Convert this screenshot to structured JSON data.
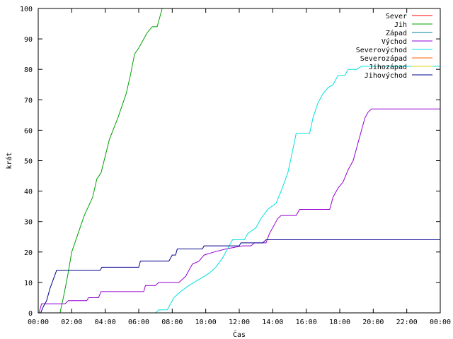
{
  "chart_data": {
    "type": "line",
    "xlabel": "Čas",
    "ylabel": "krát",
    "xlim": [
      0,
      24
    ],
    "ylim": [
      0,
      100
    ],
    "x_ticks": [
      {
        "value": 0,
        "label": "00:00"
      },
      {
        "value": 2,
        "label": "02:00"
      },
      {
        "value": 4,
        "label": "04:00"
      },
      {
        "value": 6,
        "label": "06:00"
      },
      {
        "value": 8,
        "label": "08:00"
      },
      {
        "value": 10,
        "label": "10:00"
      },
      {
        "value": 12,
        "label": "12:00"
      },
      {
        "value": 14,
        "label": "14:00"
      },
      {
        "value": 16,
        "label": "16:00"
      },
      {
        "value": 18,
        "label": "18:00"
      },
      {
        "value": 20,
        "label": "20:00"
      },
      {
        "value": 22,
        "label": "22:00"
      },
      {
        "value": 24,
        "label": "00:00"
      }
    ],
    "y_ticks": [
      {
        "value": 0,
        "label": "0"
      },
      {
        "value": 10,
        "label": "10"
      },
      {
        "value": 20,
        "label": "20"
      },
      {
        "value": 30,
        "label": "30"
      },
      {
        "value": 40,
        "label": "40"
      },
      {
        "value": 50,
        "label": "50"
      },
      {
        "value": 60,
        "label": "60"
      },
      {
        "value": 70,
        "label": "70"
      },
      {
        "value": 80,
        "label": "80"
      },
      {
        "value": 90,
        "label": "90"
      },
      {
        "value": 100,
        "label": "100"
      }
    ],
    "grid": false,
    "legend_position": "top-right",
    "series": [
      {
        "name": "Sever",
        "color": "#ff0000",
        "points": []
      },
      {
        "name": "Jih",
        "color": "#00a000",
        "points": [
          [
            1.3,
            0
          ],
          [
            1.5,
            5
          ],
          [
            1.75,
            12
          ],
          [
            2.0,
            20
          ],
          [
            2.5,
            28
          ],
          [
            2.75,
            32
          ],
          [
            3.25,
            38
          ],
          [
            3.5,
            44
          ],
          [
            3.75,
            46
          ],
          [
            4.25,
            57
          ],
          [
            4.75,
            64
          ],
          [
            5.25,
            72
          ],
          [
            5.5,
            78
          ],
          [
            5.75,
            85
          ],
          [
            6.0,
            87
          ],
          [
            6.5,
            92
          ],
          [
            6.8,
            94
          ],
          [
            7.1,
            94
          ],
          [
            7.4,
            100
          ]
        ]
      },
      {
        "name": "Západ",
        "color": "#0080a0",
        "points": []
      },
      {
        "name": "Východ",
        "color": "#9400d3",
        "points": [
          [
            0.05,
            0
          ],
          [
            0.2,
            3
          ],
          [
            1.6,
            3
          ],
          [
            1.8,
            4
          ],
          [
            2.9,
            4
          ],
          [
            3.0,
            5
          ],
          [
            3.6,
            5
          ],
          [
            3.75,
            7
          ],
          [
            6.3,
            7
          ],
          [
            6.4,
            9
          ],
          [
            7.0,
            9
          ],
          [
            7.2,
            10
          ],
          [
            8.4,
            10
          ],
          [
            8.6,
            11
          ],
          [
            8.8,
            12
          ],
          [
            9.0,
            14
          ],
          [
            9.2,
            16
          ],
          [
            9.6,
            17
          ],
          [
            9.9,
            19
          ],
          [
            10.5,
            20
          ],
          [
            11.2,
            21
          ],
          [
            12.2,
            22
          ],
          [
            12.7,
            22
          ],
          [
            12.9,
            23
          ],
          [
            13.6,
            23
          ],
          [
            13.8,
            26
          ],
          [
            14.0,
            28
          ],
          [
            14.3,
            31
          ],
          [
            14.5,
            32
          ],
          [
            15.4,
            32
          ],
          [
            15.6,
            34
          ],
          [
            17.4,
            34
          ],
          [
            17.6,
            38
          ],
          [
            17.9,
            41
          ],
          [
            18.2,
            43
          ],
          [
            18.5,
            47
          ],
          [
            18.8,
            50
          ],
          [
            19.1,
            56
          ],
          [
            19.5,
            64
          ],
          [
            19.7,
            66
          ],
          [
            19.9,
            67
          ],
          [
            24.0,
            67
          ]
        ]
      },
      {
        "name": "Severovýchod",
        "color": "#00e0e0",
        "points": [
          [
            7.0,
            0
          ],
          [
            7.2,
            1
          ],
          [
            7.7,
            1
          ],
          [
            7.9,
            3
          ],
          [
            8.1,
            5
          ],
          [
            8.5,
            7
          ],
          [
            9.0,
            9
          ],
          [
            9.6,
            11
          ],
          [
            10.2,
            13
          ],
          [
            10.6,
            15
          ],
          [
            11.0,
            18
          ],
          [
            11.4,
            22
          ],
          [
            11.6,
            24
          ],
          [
            12.3,
            24
          ],
          [
            12.5,
            26
          ],
          [
            13.0,
            28
          ],
          [
            13.3,
            31
          ],
          [
            13.7,
            34
          ],
          [
            14.2,
            36
          ],
          [
            14.5,
            40
          ],
          [
            14.9,
            46
          ],
          [
            15.1,
            51
          ],
          [
            15.4,
            59
          ],
          [
            16.2,
            59
          ],
          [
            16.4,
            64
          ],
          [
            16.7,
            69
          ],
          [
            17.0,
            72
          ],
          [
            17.3,
            74
          ],
          [
            17.6,
            75
          ],
          [
            17.9,
            78
          ],
          [
            18.3,
            78
          ],
          [
            18.5,
            80
          ],
          [
            19.0,
            80
          ],
          [
            19.3,
            81
          ],
          [
            24.0,
            81
          ]
        ]
      },
      {
        "name": "Severozápad",
        "color": "#ff6000",
        "points": []
      },
      {
        "name": "Jihozápad",
        "color": "#ffd700",
        "points": []
      },
      {
        "name": "Jihovýchod",
        "color": "#00008b",
        "points": [
          [
            0.15,
            0
          ],
          [
            0.3,
            2
          ],
          [
            0.5,
            4
          ],
          [
            0.7,
            8
          ],
          [
            0.9,
            11
          ],
          [
            1.1,
            14
          ],
          [
            3.7,
            14
          ],
          [
            3.8,
            15
          ],
          [
            6.0,
            15
          ],
          [
            6.1,
            17
          ],
          [
            7.8,
            17
          ],
          [
            8.0,
            19
          ],
          [
            8.2,
            19
          ],
          [
            8.3,
            21
          ],
          [
            9.8,
            21
          ],
          [
            9.9,
            22
          ],
          [
            12.0,
            22
          ],
          [
            12.1,
            23
          ],
          [
            13.4,
            23
          ],
          [
            13.6,
            24
          ],
          [
            24.0,
            24
          ]
        ]
      }
    ]
  }
}
